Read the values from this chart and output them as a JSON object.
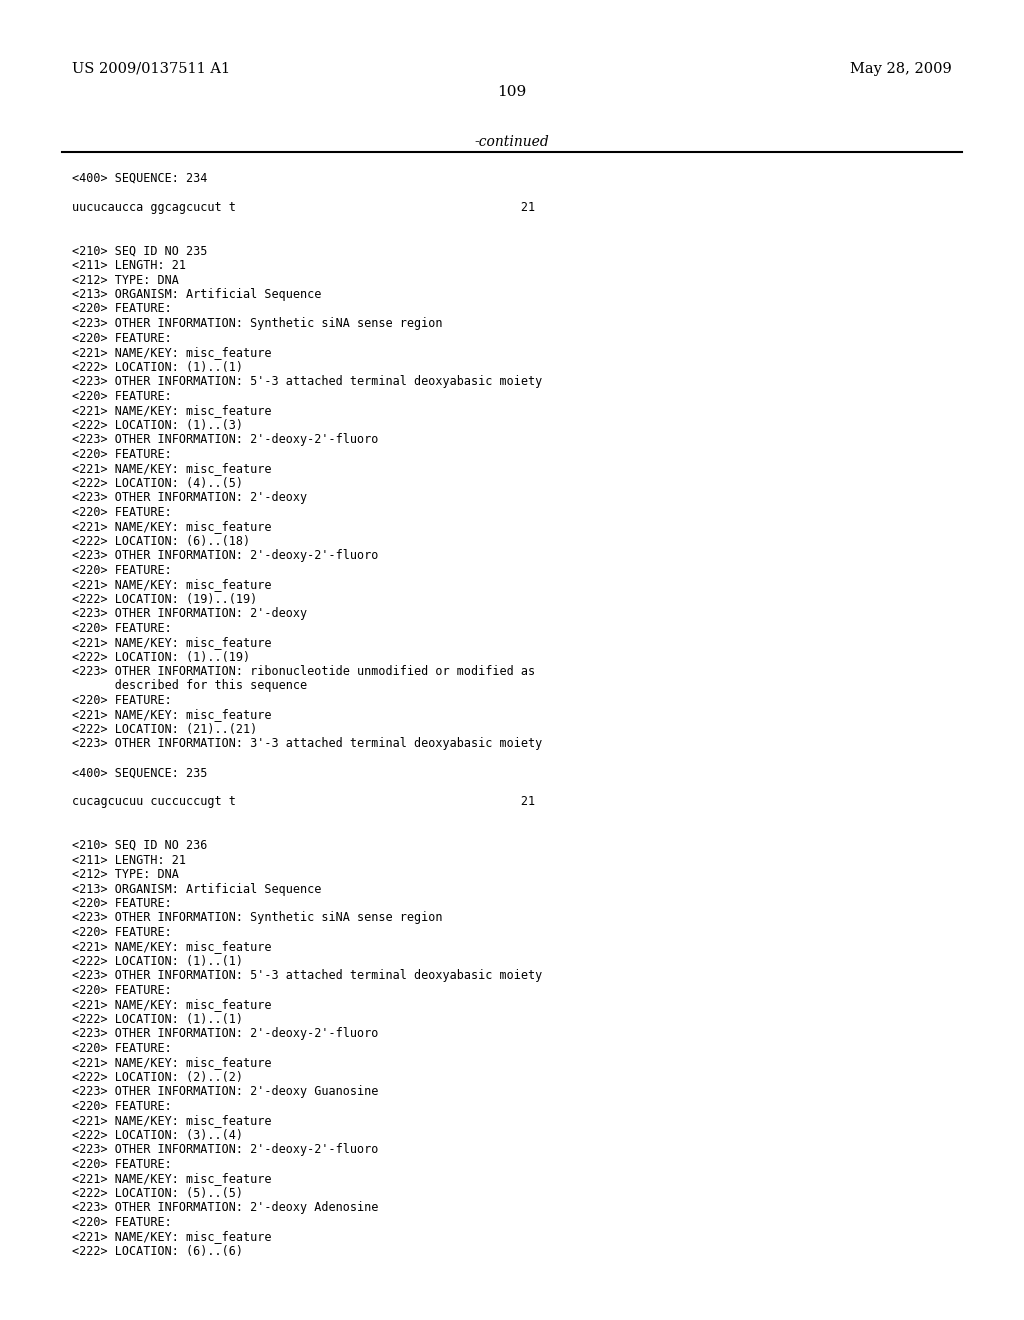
{
  "header_left": "US 2009/0137511 A1",
  "header_right": "May 28, 2009",
  "page_number": "109",
  "continued_label": "-continued",
  "background_color": "#ffffff",
  "text_color": "#000000",
  "lines": [
    "<400> SEQUENCE: 234",
    "",
    "uucucaucca ggcagcucut t                                        21",
    "",
    "",
    "<210> SEQ ID NO 235",
    "<211> LENGTH: 21",
    "<212> TYPE: DNA",
    "<213> ORGANISM: Artificial Sequence",
    "<220> FEATURE:",
    "<223> OTHER INFORMATION: Synthetic siNA sense region",
    "<220> FEATURE:",
    "<221> NAME/KEY: misc_feature",
    "<222> LOCATION: (1)..(1)",
    "<223> OTHER INFORMATION: 5'-3 attached terminal deoxyabasic moiety",
    "<220> FEATURE:",
    "<221> NAME/KEY: misc_feature",
    "<222> LOCATION: (1)..(3)",
    "<223> OTHER INFORMATION: 2'-deoxy-2'-fluoro",
    "<220> FEATURE:",
    "<221> NAME/KEY: misc_feature",
    "<222> LOCATION: (4)..(5)",
    "<223> OTHER INFORMATION: 2'-deoxy",
    "<220> FEATURE:",
    "<221> NAME/KEY: misc_feature",
    "<222> LOCATION: (6)..(18)",
    "<223> OTHER INFORMATION: 2'-deoxy-2'-fluoro",
    "<220> FEATURE:",
    "<221> NAME/KEY: misc_feature",
    "<222> LOCATION: (19)..(19)",
    "<223> OTHER INFORMATION: 2'-deoxy",
    "<220> FEATURE:",
    "<221> NAME/KEY: misc_feature",
    "<222> LOCATION: (1)..(19)",
    "<223> OTHER INFORMATION: ribonucleotide unmodified or modified as",
    "      described for this sequence",
    "<220> FEATURE:",
    "<221> NAME/KEY: misc_feature",
    "<222> LOCATION: (21)..(21)",
    "<223> OTHER INFORMATION: 3'-3 attached terminal deoxyabasic moiety",
    "",
    "<400> SEQUENCE: 235",
    "",
    "cucagcucuu cuccuccugt t                                        21",
    "",
    "",
    "<210> SEQ ID NO 236",
    "<211> LENGTH: 21",
    "<212> TYPE: DNA",
    "<213> ORGANISM: Artificial Sequence",
    "<220> FEATURE:",
    "<223> OTHER INFORMATION: Synthetic siNA sense region",
    "<220> FEATURE:",
    "<221> NAME/KEY: misc_feature",
    "<222> LOCATION: (1)..(1)",
    "<223> OTHER INFORMATION: 5'-3 attached terminal deoxyabasic moiety",
    "<220> FEATURE:",
    "<221> NAME/KEY: misc_feature",
    "<222> LOCATION: (1)..(1)",
    "<223> OTHER INFORMATION: 2'-deoxy-2'-fluoro",
    "<220> FEATURE:",
    "<221> NAME/KEY: misc_feature",
    "<222> LOCATION: (2)..(2)",
    "<223> OTHER INFORMATION: 2'-deoxy Guanosine",
    "<220> FEATURE:",
    "<221> NAME/KEY: misc_feature",
    "<222> LOCATION: (3)..(4)",
    "<223> OTHER INFORMATION: 2'-deoxy-2'-fluoro",
    "<220> FEATURE:",
    "<221> NAME/KEY: misc_feature",
    "<222> LOCATION: (5)..(5)",
    "<223> OTHER INFORMATION: 2'-deoxy Adenosine",
    "<220> FEATURE:",
    "<221> NAME/KEY: misc_feature",
    "<222> LOCATION: (6)..(6)"
  ]
}
